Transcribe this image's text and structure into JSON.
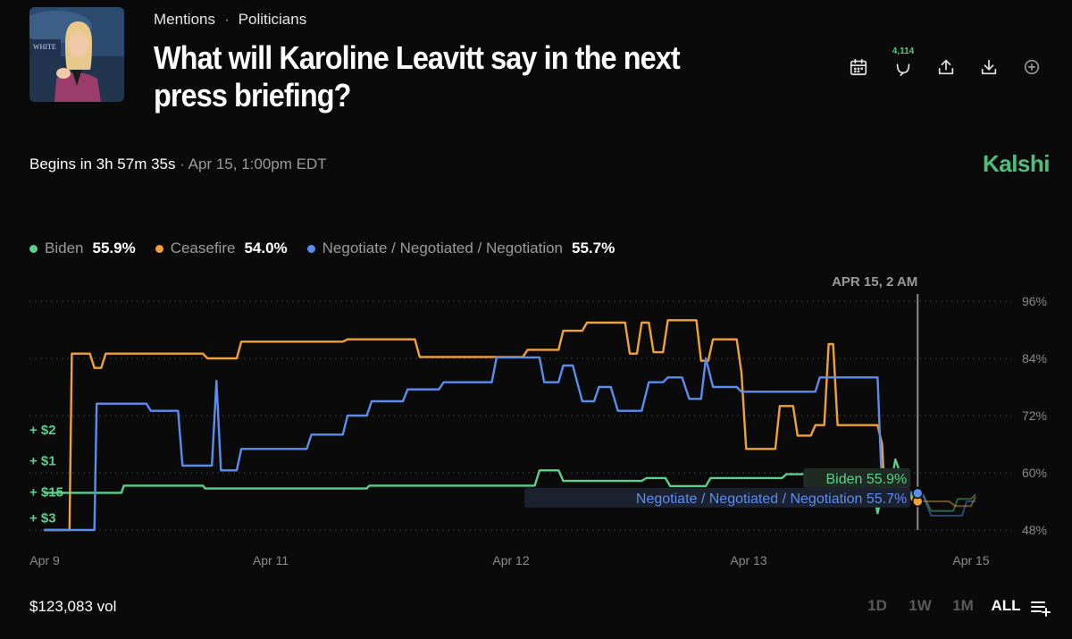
{
  "header": {
    "breadcrumb": [
      "Mentions",
      "Politicians"
    ],
    "title": "What will Karoline Leavitt say in the next press briefing?",
    "comment_count": "4,114",
    "thumbnail_sign_text": "WHITE"
  },
  "status": {
    "begins": "Begins in 3h 57m 35s",
    "date": "· Apr 15, 1:00pm EDT",
    "brand": "Kalshi"
  },
  "legend": [
    {
      "name": "Biden",
      "value": "55.9%",
      "color": "#5ccf8b"
    },
    {
      "name": "Ceasefire",
      "value": "54.0%",
      "color": "#f0a23a"
    },
    {
      "name": "Negotiate / Negotiated / Negotiation",
      "value": "55.7%",
      "color": "#5b8def"
    }
  ],
  "footer": {
    "volume": "$123,083 vol",
    "ranges": [
      "1D",
      "1W",
      "1M",
      "ALL"
    ],
    "active_range": "ALL"
  },
  "chart_data": {
    "type": "line",
    "x_range": [
      0,
      6.1
    ],
    "x_ticks": [
      {
        "x": 0,
        "label": "Apr 9"
      },
      {
        "x": 1,
        "label": "Apr 11"
      },
      {
        "x": 2,
        "label": "Apr 12"
      },
      {
        "x": 3,
        "label": "Apr 13"
      },
      {
        "x": 4,
        "label": "Apr 15"
      }
    ],
    "ylim": [
      48,
      96
    ],
    "y_ticks": [
      "96%",
      "84%",
      "72%",
      "60%",
      "48%"
    ],
    "hover_label": "APR 15, 2 AM",
    "hover_x": 3.76,
    "end_labels": [
      {
        "series": "Biden",
        "text": "Biden 55.9%"
      },
      {
        "series": "Negotiate / Negotiated / Negotiation",
        "text": "Negotiate / Negotiated / Negotiation 55.7%"
      }
    ],
    "trade_markers": [
      {
        "text": "+ $2",
        "y": 69
      },
      {
        "text": "+ $1",
        "y": 62.5
      },
      {
        "text": "+ $15",
        "y": 56
      },
      {
        "text": "+ $3",
        "y": 50.5
      }
    ],
    "series": [
      {
        "name": "Biden",
        "color": "#5ccf8b",
        "points": [
          [
            0.0,
            55.8
          ],
          [
            0.34,
            55.8
          ],
          [
            0.35,
            57.3
          ],
          [
            0.7,
            57.3
          ],
          [
            0.71,
            56.7
          ],
          [
            1.4,
            56.7
          ],
          [
            1.41,
            57.3
          ],
          [
            2.1,
            57.3
          ],
          [
            2.12,
            60.5
          ],
          [
            2.2,
            60.5
          ],
          [
            2.22,
            58.3
          ],
          [
            2.55,
            58.3
          ],
          [
            2.57,
            58.9
          ],
          [
            2.65,
            58.9
          ],
          [
            2.67,
            57.2
          ],
          [
            2.82,
            57.2
          ],
          [
            2.84,
            58.9
          ],
          [
            3.15,
            58.9
          ],
          [
            3.17,
            59.7
          ],
          [
            3.35,
            59.7
          ],
          [
            3.37,
            60.5
          ],
          [
            3.45,
            60.5
          ],
          [
            3.46,
            57.5
          ],
          [
            3.5,
            57.5
          ],
          [
            3.52,
            56.5
          ],
          [
            3.56,
            56.5
          ],
          [
            3.58,
            51.5
          ],
          [
            3.6,
            56
          ],
          [
            3.64,
            57.5
          ],
          [
            3.66,
            62.8
          ],
          [
            3.7,
            57.5
          ],
          [
            3.74,
            55
          ],
          [
            3.78,
            55.9
          ]
        ]
      },
      {
        "name": "Ceasefire",
        "color": "#f0a23a",
        "points": [
          [
            0.0,
            48
          ],
          [
            0.11,
            48
          ],
          [
            0.12,
            85
          ],
          [
            0.2,
            85
          ],
          [
            0.22,
            82
          ],
          [
            0.25,
            82
          ],
          [
            0.27,
            85
          ],
          [
            0.7,
            85
          ],
          [
            0.72,
            84
          ],
          [
            0.85,
            84
          ],
          [
            0.87,
            87.5
          ],
          [
            1.3,
            87.5
          ],
          [
            1.32,
            88
          ],
          [
            1.6,
            88
          ],
          [
            1.62,
            84.3
          ],
          [
            2.05,
            84.3
          ],
          [
            2.07,
            85.8
          ],
          [
            2.2,
            85.8
          ],
          [
            2.22,
            89.8
          ],
          [
            2.3,
            89.8
          ],
          [
            2.32,
            91.5
          ],
          [
            2.48,
            91.5
          ],
          [
            2.5,
            85
          ],
          [
            2.53,
            85
          ],
          [
            2.55,
            91.5
          ],
          [
            2.58,
            91.5
          ],
          [
            2.6,
            85.3
          ],
          [
            2.64,
            85.3
          ],
          [
            2.66,
            92
          ],
          [
            2.78,
            92
          ],
          [
            2.8,
            83.5
          ],
          [
            2.83,
            83.5
          ],
          [
            2.85,
            88
          ],
          [
            2.95,
            88
          ],
          [
            2.97,
            81
          ],
          [
            2.99,
            65
          ],
          [
            3.12,
            65
          ],
          [
            3.14,
            74
          ],
          [
            3.2,
            74
          ],
          [
            3.22,
            67.8
          ],
          [
            3.28,
            67.8
          ],
          [
            3.3,
            70
          ],
          [
            3.34,
            70
          ],
          [
            3.36,
            87
          ],
          [
            3.38,
            87
          ],
          [
            3.4,
            70
          ],
          [
            3.58,
            70
          ],
          [
            3.6,
            66
          ],
          [
            3.61,
            57
          ],
          [
            3.65,
            55
          ],
          [
            3.7,
            57.5
          ],
          [
            3.74,
            54
          ],
          [
            3.78,
            54
          ]
        ]
      },
      {
        "name": "Negotiate / Negotiated / Negotiation",
        "color": "#5b8def",
        "points": [
          [
            0.0,
            48
          ],
          [
            0.22,
            48
          ],
          [
            0.23,
            74.5
          ],
          [
            0.45,
            74.5
          ],
          [
            0.47,
            73
          ],
          [
            0.59,
            73
          ],
          [
            0.61,
            61.5
          ],
          [
            0.74,
            61.5
          ],
          [
            0.76,
            79.3
          ],
          [
            0.78,
            60.5
          ],
          [
            0.85,
            60.5
          ],
          [
            0.87,
            65
          ],
          [
            1.15,
            65
          ],
          [
            1.17,
            68
          ],
          [
            1.3,
            68
          ],
          [
            1.32,
            72
          ],
          [
            1.4,
            72
          ],
          [
            1.42,
            75
          ],
          [
            1.55,
            75
          ],
          [
            1.57,
            77.5
          ],
          [
            1.7,
            77.5
          ],
          [
            1.72,
            79
          ],
          [
            1.92,
            79
          ],
          [
            1.94,
            84.2
          ],
          [
            2.12,
            84.2
          ],
          [
            2.14,
            79
          ],
          [
            2.2,
            79
          ],
          [
            2.22,
            82.5
          ],
          [
            2.26,
            82.5
          ],
          [
            2.3,
            75
          ],
          [
            2.35,
            75
          ],
          [
            2.37,
            78
          ],
          [
            2.42,
            78
          ],
          [
            2.45,
            73
          ],
          [
            2.55,
            73
          ],
          [
            2.58,
            79
          ],
          [
            2.64,
            79
          ],
          [
            2.66,
            80
          ],
          [
            2.72,
            80
          ],
          [
            2.75,
            75.5
          ],
          [
            2.8,
            75.5
          ],
          [
            2.82,
            84
          ],
          [
            2.85,
            78
          ],
          [
            2.95,
            78
          ],
          [
            2.97,
            77
          ],
          [
            3.3,
            77
          ],
          [
            3.32,
            80
          ],
          [
            3.58,
            80
          ],
          [
            3.6,
            56
          ],
          [
            3.64,
            56
          ],
          [
            3.66,
            58
          ],
          [
            3.7,
            55
          ],
          [
            3.74,
            56
          ],
          [
            3.78,
            55.7
          ]
        ]
      }
    ],
    "post_series": [
      {
        "color": "#5ccf8b",
        "points": [
          [
            3.78,
            55.9
          ],
          [
            3.82,
            52
          ],
          [
            3.92,
            52
          ],
          [
            3.94,
            54.5
          ],
          [
            4.0,
            54.5
          ],
          [
            4.02,
            55.5
          ]
        ]
      },
      {
        "color": "#f0a23a",
        "points": [
          [
            3.78,
            54
          ],
          [
            3.82,
            54
          ],
          [
            3.9,
            54
          ],
          [
            3.93,
            53
          ],
          [
            4.0,
            53
          ],
          [
            4.02,
            55
          ]
        ]
      },
      {
        "color": "#5b8def",
        "points": [
          [
            3.78,
            55.7
          ],
          [
            3.82,
            51
          ],
          [
            3.96,
            51
          ],
          [
            3.98,
            54
          ],
          [
            4.02,
            54
          ]
        ]
      }
    ]
  }
}
